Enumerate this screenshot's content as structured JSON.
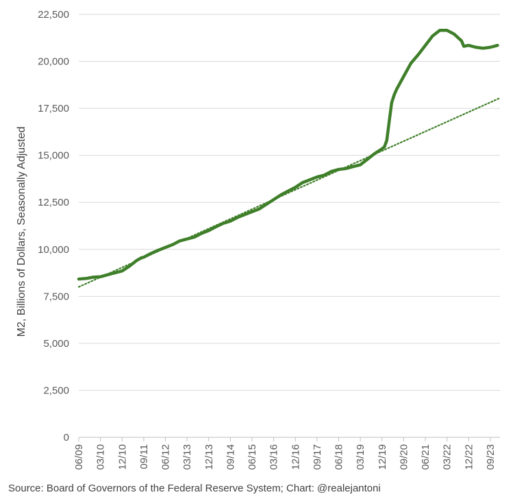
{
  "chart_data": {
    "type": "line",
    "ylabel": "M2, Billions of Dollars, Seasonally Adjusted",
    "xlabel": "",
    "ylim": [
      0,
      22500
    ],
    "yticks": [
      0,
      2500,
      5000,
      7500,
      10000,
      12500,
      15000,
      17500,
      20000,
      22500
    ],
    "ytick_labels": [
      "0",
      "2,500",
      "5,000",
      "7,500",
      "10,000",
      "12,500",
      "15,000",
      "17,500",
      "20,000",
      "22,500"
    ],
    "xlim": [
      "2009-06",
      "2024-01"
    ],
    "xtick_labels": [
      "06/09",
      "03/10",
      "12/10",
      "09/11",
      "06/12",
      "03/13",
      "12/13",
      "09/14",
      "06/15",
      "03/16",
      "12/16",
      "09/17",
      "06/18",
      "03/19",
      "12/19",
      "09/20",
      "06/21",
      "03/22",
      "12/22",
      "09/23"
    ],
    "grid": "horizontal",
    "legend": "none",
    "colors": {
      "series": "#3f7f2a",
      "trend": "#3f7f2a",
      "grid": "#d9d9d9",
      "axis": "#bfbfbf"
    },
    "series": [
      {
        "style": "solid",
        "x": [
          "2009-06",
          "2009-09",
          "2009-12",
          "2010-03",
          "2010-06",
          "2010-09",
          "2010-12",
          "2011-03",
          "2011-06",
          "2011-08",
          "2011-09",
          "2011-12",
          "2012-03",
          "2012-06",
          "2012-09",
          "2012-12",
          "2013-03",
          "2013-06",
          "2013-09",
          "2013-12",
          "2014-03",
          "2014-06",
          "2014-09",
          "2014-12",
          "2015-03",
          "2015-06",
          "2015-09",
          "2015-12",
          "2016-03",
          "2016-06",
          "2016-09",
          "2016-12",
          "2017-03",
          "2017-06",
          "2017-09",
          "2017-12",
          "2018-03",
          "2018-06",
          "2018-09",
          "2018-12",
          "2019-03",
          "2019-06",
          "2019-09",
          "2019-12",
          "2020-01",
          "2020-02",
          "2020-03",
          "2020-04",
          "2020-05",
          "2020-06",
          "2020-09",
          "2020-12",
          "2021-03",
          "2021-06",
          "2021-09",
          "2021-12",
          "2022-03",
          "2022-06",
          "2022-09",
          "2022-10",
          "2022-12",
          "2023-03",
          "2023-06",
          "2023-09",
          "2023-12"
        ],
        "values": [
          8420,
          8450,
          8520,
          8540,
          8650,
          8750,
          8850,
          9100,
          9400,
          9550,
          9580,
          9780,
          9950,
          10100,
          10250,
          10450,
          10550,
          10650,
          10850,
          11000,
          11200,
          11380,
          11500,
          11700,
          11850,
          12000,
          12150,
          12400,
          12650,
          12900,
          13100,
          13300,
          13550,
          13700,
          13850,
          13950,
          14150,
          14250,
          14300,
          14400,
          14500,
          14800,
          15100,
          15350,
          15450,
          15800,
          16800,
          17800,
          18200,
          18500,
          19200,
          19900,
          20350,
          20850,
          21350,
          21650,
          21650,
          21450,
          21100,
          20800,
          20850,
          20750,
          20700,
          20750,
          20850
        ]
      },
      {
        "style": "dotted",
        "x": [
          "2009-06",
          "2024-01"
        ],
        "values": [
          8000,
          18050
        ]
      }
    ]
  },
  "source_text": "Source: Board of Governors of the Federal Reserve System; Chart: @realejantoni"
}
